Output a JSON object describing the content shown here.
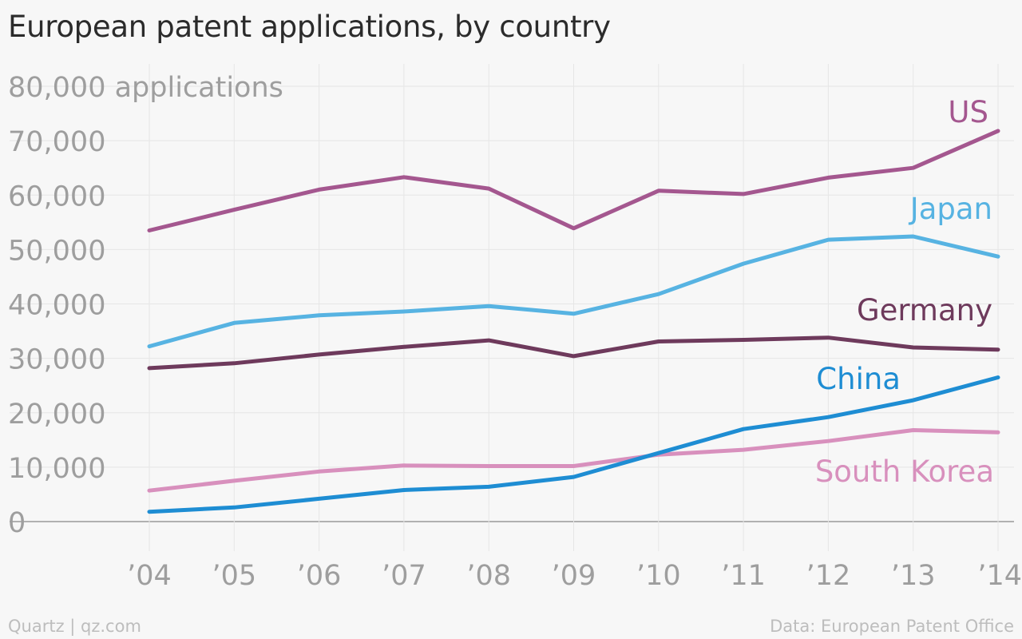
{
  "chart_data": {
    "type": "line",
    "title": "European patent applications, by country",
    "ylabel": "applications",
    "x_labels": [
      "’04",
      "’05",
      "’06",
      "’07",
      "’08",
      "’09",
      "’10",
      "’11",
      "’12",
      "’13",
      "’14"
    ],
    "x": [
      2004,
      2005,
      2006,
      2007,
      2008,
      2009,
      2010,
      2011,
      2012,
      2013,
      2014
    ],
    "y_ticks": [
      0,
      10000,
      20000,
      30000,
      40000,
      50000,
      60000,
      70000,
      80000
    ],
    "y_tick_labels": [
      "0",
      "10,000",
      "20,000",
      "30,000",
      "40,000",
      "50,000",
      "60,000",
      "70,000",
      "80,000 applications"
    ],
    "ylim": [
      0,
      80000
    ],
    "grid": true,
    "series": [
      {
        "name": "US",
        "color": "#a4578f",
        "values": [
          53500,
          57300,
          61000,
          63300,
          61200,
          53900,
          60800,
          60200,
          63200,
          65000,
          71800
        ]
      },
      {
        "name": "Japan",
        "color": "#57b3e2",
        "values": [
          32200,
          36500,
          37900,
          38600,
          39600,
          38200,
          41800,
          47400,
          51800,
          52400,
          48700
        ]
      },
      {
        "name": "Germany",
        "color": "#6e3a5c",
        "values": [
          28200,
          29100,
          30700,
          32100,
          33300,
          30400,
          33100,
          33400,
          33800,
          32000,
          31600
        ]
      },
      {
        "name": "China",
        "color": "#1e8dd3",
        "values": [
          1800,
          2600,
          4200,
          5800,
          6400,
          8200,
          12600,
          17000,
          19200,
          22300,
          26500
        ]
      },
      {
        "name": "South Korea",
        "color": "#d890bd",
        "values": [
          5700,
          7500,
          9200,
          10300,
          10200,
          10200,
          12300,
          13200,
          14800,
          16800,
          16400
        ]
      }
    ]
  },
  "footer": {
    "credit": "Quartz | qz.com",
    "source": "Data: European Patent Office"
  }
}
